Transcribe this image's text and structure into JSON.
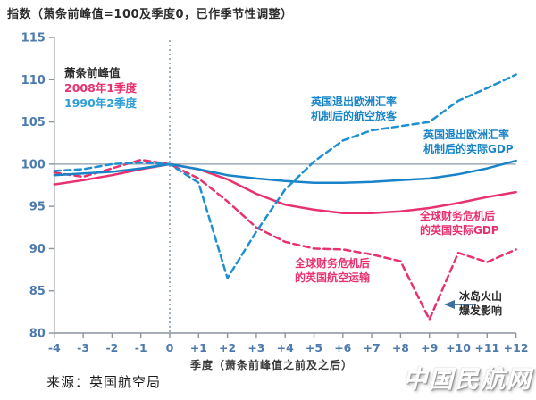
{
  "title": "指数（萧条前峰值=100及季度0，已作季节性调整）",
  "source": "来源：英国航空局",
  "watermark": "中国民航网",
  "colors": {
    "blue": "#1884c7",
    "red": "#e8316e",
    "axis": "#8a949e",
    "tick_label": "#4c7aac",
    "ref_line": "#8a99a8",
    "zero_line": "#5a7a9b",
    "arrow": "#3c6e9e",
    "text_dark": "#2b2b2b"
  },
  "legend": {
    "title": "萧条前峰值",
    "items": [
      {
        "label": "2008年1季度",
        "color": "#e8316e"
      },
      {
        "label": "1990年2季度",
        "color": "#2e9fd8"
      }
    ]
  },
  "annotations": {
    "erm_air": {
      "line1": "英国退出欧洲汇率",
      "line2": "机制后的航空旅客",
      "color": "blue"
    },
    "erm_gdp": {
      "line1": "英国退出欧洲汇率",
      "line2": "机制后的实际GDP",
      "color": "blue"
    },
    "gfc_gdp": {
      "line1": "全球财务危机后",
      "line2": "的英国实际GDP",
      "color": "red"
    },
    "gfc_air": {
      "line1": "全球财务危机后",
      "line2": "的英国航空运输",
      "color": "red"
    },
    "volcano": {
      "line1": "冰岛火山",
      "line2": "爆发影响",
      "color": "dark"
    }
  },
  "chart_data": {
    "type": "line",
    "title": "指数（萧条前峰值=100及季度0，已作季节性调整）",
    "xlabel": "季度（萧条前峰值之前及之后）",
    "ylabel": "指数",
    "x": [
      -4,
      -3,
      -2,
      -1,
      0,
      1,
      2,
      3,
      4,
      5,
      6,
      7,
      8,
      9,
      10,
      11,
      12
    ],
    "x_tick_labels": [
      "-4",
      "-3",
      "-2",
      "-1",
      "0",
      "+1",
      "+2",
      "+3",
      "+4",
      "+5",
      "+6",
      "+7",
      "+8",
      "+9",
      "+10",
      "+11",
      "+12"
    ],
    "y_ticks": [
      80,
      85,
      90,
      95,
      100,
      105,
      110,
      115
    ],
    "ylim": [
      80,
      115
    ],
    "grid": false,
    "legend_position": "top-left",
    "reference_lines": {
      "horizontal_y": 100,
      "vertical_x": 0
    },
    "series": [
      {
        "name": "全球财务危机后的英国实际GDP",
        "period": "2008年1季度",
        "style": "solid",
        "color": "#e8316e",
        "values": [
          97.6,
          98.1,
          98.7,
          99.4,
          100,
          99.4,
          98.2,
          96.5,
          95.2,
          94.6,
          94.2,
          94.2,
          94.4,
          94.8,
          95.4,
          96.1,
          96.7
        ]
      },
      {
        "name": "全球财务危机后的英国航空运输",
        "period": "2008年1季度",
        "style": "dashed",
        "color": "#e8316e",
        "values": [
          99.0,
          98.5,
          99.5,
          100.5,
          100,
          98.3,
          95.6,
          92.5,
          90.8,
          90.0,
          89.9,
          89.3,
          88.5,
          81.6,
          89.5,
          88.4,
          89.9
        ]
      },
      {
        "name": "英国退出欧洲汇率机制后的实际GDP",
        "period": "1990年2季度",
        "style": "solid",
        "color": "#1884c7",
        "values": [
          98.7,
          98.9,
          99.1,
          99.5,
          100,
          99.4,
          98.7,
          98.3,
          98.0,
          97.8,
          97.8,
          97.9,
          98.1,
          98.3,
          98.8,
          99.5,
          100.4
        ]
      },
      {
        "name": "英国退出欧洲汇率机制后的航空旅客",
        "period": "1990年2季度",
        "style": "dashed",
        "color": "#1e8fd0",
        "values": [
          99.2,
          99.4,
          100.0,
          100.2,
          100,
          97.8,
          86.5,
          92.0,
          97.0,
          100.3,
          102.8,
          104.0,
          104.5,
          105.0,
          107.5,
          109.0,
          110.6
        ]
      }
    ],
    "annotation": "冰岛火山爆发影响 → 指向2008系列航空运输在+9季度的低谷(约81.6)"
  }
}
